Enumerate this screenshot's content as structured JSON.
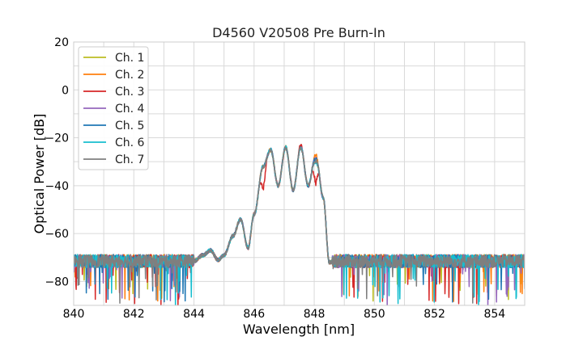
{
  "chart_data": {
    "type": "line",
    "title": "D4560 V20508 Pre Burn-In",
    "xlabel": "Wavelength [nm]",
    "ylabel": "Optical Power [dB]",
    "xlim": [
      840,
      855
    ],
    "ylim": [
      -90,
      20
    ],
    "xticks": [
      "840",
      "842",
      "844",
      "846",
      "848",
      "850",
      "852",
      "854"
    ],
    "yticks": [
      "20",
      "0",
      "−20",
      "−40",
      "−60",
      "−80"
    ],
    "grid": true,
    "legend_position": "top-left",
    "series": [
      {
        "name": "Ch. 1",
        "color": "#bcbd22"
      },
      {
        "name": "Ch. 2",
        "color": "#ff7f0e"
      },
      {
        "name": "Ch. 3",
        "color": "#d62728"
      },
      {
        "name": "Ch. 4",
        "color": "#9467bd"
      },
      {
        "name": "Ch. 5",
        "color": "#1f77b4"
      },
      {
        "name": "Ch. 6",
        "color": "#17becf"
      },
      {
        "name": "Ch. 7",
        "color": "#7f7f7f"
      }
    ],
    "envelope": {
      "x": [
        840,
        844.0,
        844.3,
        844.55,
        844.8,
        845.0,
        845.3,
        845.55,
        845.8,
        846.0,
        846.3,
        846.55,
        846.8,
        847.05,
        847.3,
        847.55,
        847.8,
        848.05,
        848.3,
        848.5,
        848.7,
        855
      ],
      "y": [
        -71.5,
        -71.5,
        -69,
        -67,
        -71,
        -69,
        -61,
        -54,
        -66,
        -52,
        -32,
        -25,
        -40,
        -24,
        -42,
        -24,
        -40,
        -27,
        -45,
        -72,
        -71.5,
        -71.5
      ]
    }
  }
}
